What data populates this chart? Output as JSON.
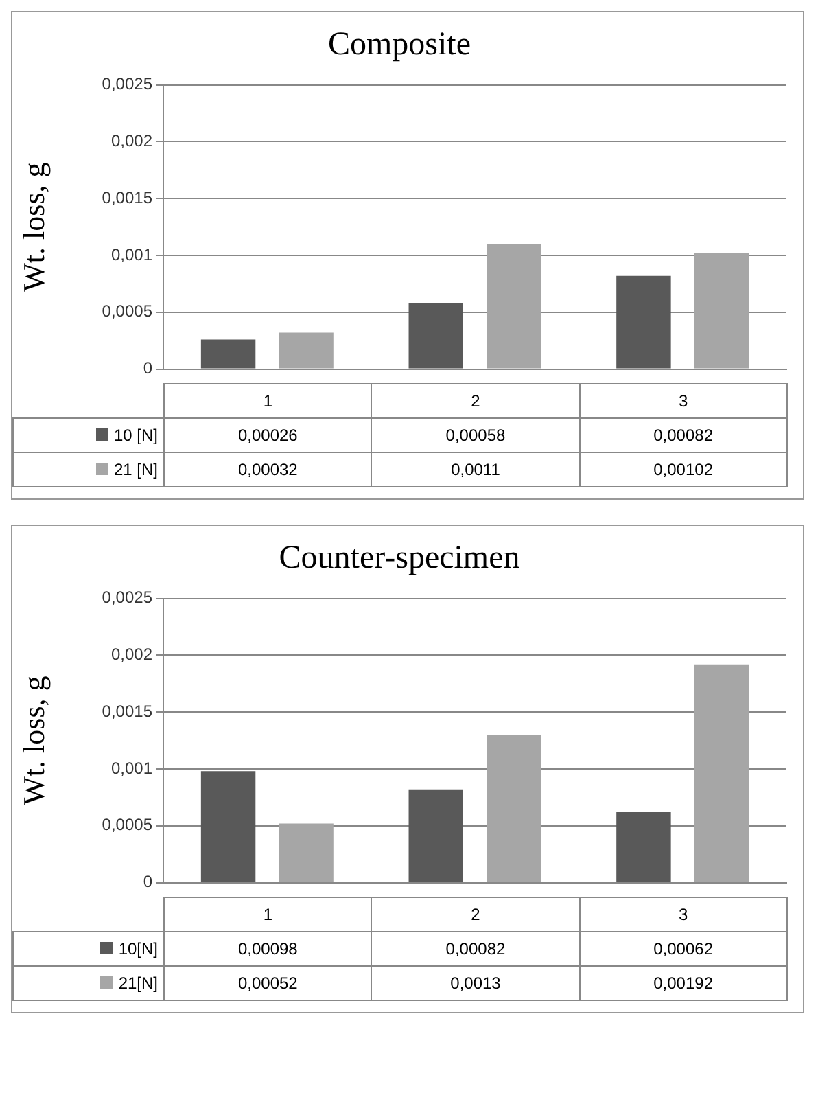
{
  "chart_data": [
    {
      "type": "bar",
      "title": "Composite",
      "ylabel": "Wt. loss, g",
      "categories": [
        "1",
        "2",
        "3"
      ],
      "series": [
        {
          "name": "10 [N]",
          "color": "#595959",
          "values": [
            0.00026,
            0.00058,
            0.00082
          ],
          "value_labels": [
            "0,00026",
            "0,00058",
            "0,00082"
          ]
        },
        {
          "name": "21 [N]",
          "color": "#a6a6a6",
          "values": [
            0.00032,
            0.0011,
            0.00102
          ],
          "value_labels": [
            "0,00032",
            "0,0011",
            "0,00102"
          ]
        }
      ],
      "ylim": [
        0,
        0.0025
      ],
      "yticks": [
        {
          "value": 0,
          "label": "0"
        },
        {
          "value": 0.0005,
          "label": "0,0005"
        },
        {
          "value": 0.001,
          "label": "0,001"
        },
        {
          "value": 0.0015,
          "label": "0,0015"
        },
        {
          "value": 0.002,
          "label": "0,002"
        },
        {
          "value": 0.0025,
          "label": "0,0025"
        }
      ],
      "grid": "y",
      "legend": "bottom"
    },
    {
      "type": "bar",
      "title": "Counter-specimen",
      "ylabel": "Wt. loss, g",
      "categories": [
        "1",
        "2",
        "3"
      ],
      "series": [
        {
          "name": "10[N]",
          "color": "#595959",
          "values": [
            0.00098,
            0.00082,
            0.00062
          ],
          "value_labels": [
            "0,00098",
            "0,00082",
            "0,00062"
          ]
        },
        {
          "name": "21[N]",
          "color": "#a6a6a6",
          "values": [
            0.00052,
            0.0013,
            0.00192
          ],
          "value_labels": [
            "0,00052",
            "0,0013",
            "0,00192"
          ]
        }
      ],
      "ylim": [
        0,
        0.0025
      ],
      "yticks": [
        {
          "value": 0,
          "label": "0"
        },
        {
          "value": 0.0005,
          "label": "0,0005"
        },
        {
          "value": 0.001,
          "label": "0,001"
        },
        {
          "value": 0.0015,
          "label": "0,0015"
        },
        {
          "value": 0.002,
          "label": "0,002"
        },
        {
          "value": 0.0025,
          "label": "0,0025"
        }
      ],
      "grid": "y",
      "legend": "bottom"
    }
  ]
}
